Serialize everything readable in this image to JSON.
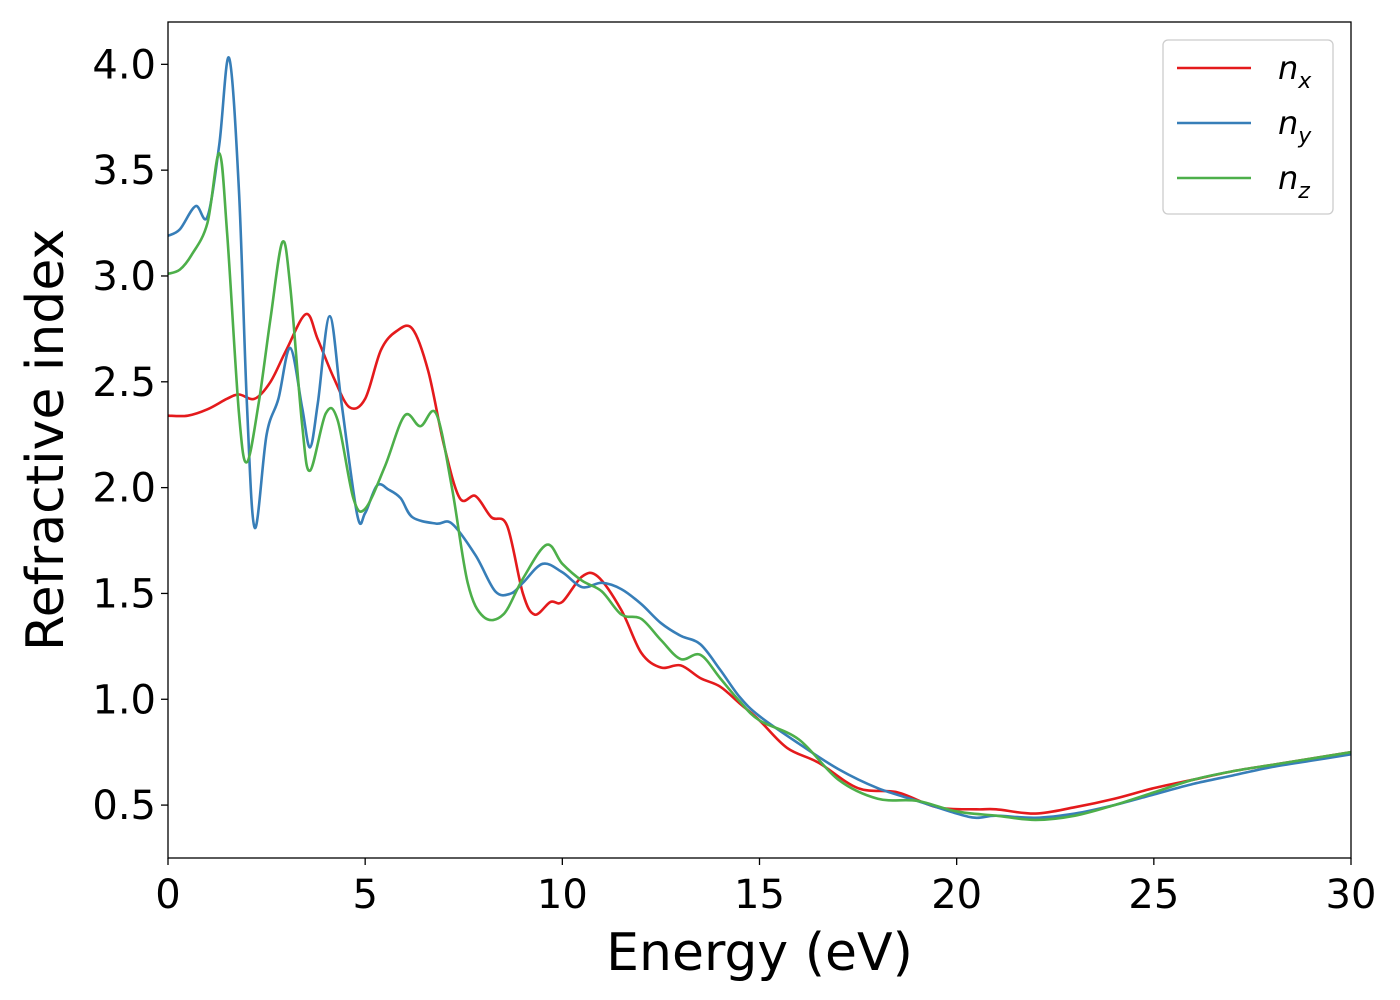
{
  "chart_data": {
    "type": "line",
    "title": "",
    "xlabel": "Energy (eV)",
    "ylabel": "Refractive index",
    "xlim": [
      0,
      30
    ],
    "ylim": [
      0.25,
      4.2
    ],
    "xticks": [
      0,
      5,
      10,
      15,
      20,
      25,
      30
    ],
    "xtick_labels": [
      "0",
      "5",
      "10",
      "15",
      "20",
      "25",
      "30"
    ],
    "yticks": [
      0.5,
      1.0,
      1.5,
      2.0,
      2.5,
      3.0,
      3.5,
      4.0
    ],
    "ytick_labels": [
      "0.5",
      "1.0",
      "1.5",
      "2.0",
      "2.5",
      "3.0",
      "3.5",
      "4.0"
    ],
    "grid": false,
    "legend_position": "top-right",
    "series": [
      {
        "name": "n",
        "subscript": "x",
        "color": "#e41a1c",
        "points": [
          [
            0,
            2.34
          ],
          [
            0.5,
            2.34
          ],
          [
            1.0,
            2.37
          ],
          [
            1.5,
            2.42
          ],
          [
            1.8,
            2.44
          ],
          [
            2.2,
            2.42
          ],
          [
            2.6,
            2.5
          ],
          [
            3.0,
            2.65
          ],
          [
            3.5,
            2.82
          ],
          [
            3.8,
            2.7
          ],
          [
            4.2,
            2.52
          ],
          [
            4.6,
            2.38
          ],
          [
            5.0,
            2.42
          ],
          [
            5.4,
            2.65
          ],
          [
            5.8,
            2.74
          ],
          [
            6.2,
            2.75
          ],
          [
            6.6,
            2.55
          ],
          [
            7.0,
            2.2
          ],
          [
            7.4,
            1.95
          ],
          [
            7.8,
            1.96
          ],
          [
            8.2,
            1.86
          ],
          [
            8.6,
            1.82
          ],
          [
            9.0,
            1.5
          ],
          [
            9.3,
            1.4
          ],
          [
            9.7,
            1.46
          ],
          [
            10.0,
            1.46
          ],
          [
            10.5,
            1.58
          ],
          [
            10.9,
            1.58
          ],
          [
            11.5,
            1.42
          ],
          [
            12.0,
            1.22
          ],
          [
            12.5,
            1.15
          ],
          [
            13.0,
            1.16
          ],
          [
            13.5,
            1.1
          ],
          [
            14.0,
            1.06
          ],
          [
            14.5,
            0.98
          ],
          [
            15.0,
            0.9
          ],
          [
            15.7,
            0.77
          ],
          [
            16.5,
            0.7
          ],
          [
            17.5,
            0.58
          ],
          [
            18.5,
            0.56
          ],
          [
            19.5,
            0.49
          ],
          [
            20.5,
            0.48
          ],
          [
            21.0,
            0.48
          ],
          [
            22.0,
            0.46
          ],
          [
            23.0,
            0.49
          ],
          [
            24.0,
            0.53
          ],
          [
            25.0,
            0.58
          ],
          [
            26.0,
            0.62
          ],
          [
            27.0,
            0.66
          ],
          [
            28.0,
            0.69
          ],
          [
            29.0,
            0.72
          ],
          [
            30.0,
            0.75
          ]
        ]
      },
      {
        "name": "n",
        "subscript": "y",
        "color": "#377eb8",
        "points": [
          [
            0,
            3.19
          ],
          [
            0.3,
            3.22
          ],
          [
            0.7,
            3.33
          ],
          [
            1.0,
            3.28
          ],
          [
            1.3,
            3.62
          ],
          [
            1.55,
            4.03
          ],
          [
            1.8,
            3.4
          ],
          [
            2.0,
            2.4
          ],
          [
            2.2,
            1.81
          ],
          [
            2.5,
            2.25
          ],
          [
            2.8,
            2.42
          ],
          [
            3.1,
            2.66
          ],
          [
            3.4,
            2.38
          ],
          [
            3.6,
            2.19
          ],
          [
            3.8,
            2.4
          ],
          [
            4.1,
            2.81
          ],
          [
            4.4,
            2.4
          ],
          [
            4.8,
            1.87
          ],
          [
            5.0,
            1.88
          ],
          [
            5.3,
            2.01
          ],
          [
            5.6,
            1.99
          ],
          [
            5.9,
            1.95
          ],
          [
            6.2,
            1.86
          ],
          [
            6.8,
            1.83
          ],
          [
            7.2,
            1.83
          ],
          [
            7.8,
            1.68
          ],
          [
            8.3,
            1.51
          ],
          [
            8.7,
            1.5
          ],
          [
            9.0,
            1.55
          ],
          [
            9.5,
            1.64
          ],
          [
            10.0,
            1.6
          ],
          [
            10.5,
            1.53
          ],
          [
            11.0,
            1.55
          ],
          [
            11.5,
            1.52
          ],
          [
            12.0,
            1.45
          ],
          [
            12.5,
            1.36
          ],
          [
            13.0,
            1.3
          ],
          [
            13.5,
            1.26
          ],
          [
            14.0,
            1.14
          ],
          [
            14.5,
            1.01
          ],
          [
            15.0,
            0.92
          ],
          [
            16.0,
            0.79
          ],
          [
            17.0,
            0.67
          ],
          [
            18.0,
            0.58
          ],
          [
            19.0,
            0.52
          ],
          [
            20.0,
            0.46
          ],
          [
            20.5,
            0.44
          ],
          [
            21.0,
            0.45
          ],
          [
            22.0,
            0.44
          ],
          [
            23.0,
            0.46
          ],
          [
            24.0,
            0.5
          ],
          [
            25.0,
            0.55
          ],
          [
            26.0,
            0.6
          ],
          [
            27.0,
            0.64
          ],
          [
            28.0,
            0.68
          ],
          [
            29.0,
            0.71
          ],
          [
            30.0,
            0.74
          ]
        ]
      },
      {
        "name": "n",
        "subscript": "z",
        "color": "#4daf4a",
        "points": [
          [
            0,
            3.01
          ],
          [
            0.3,
            3.03
          ],
          [
            0.6,
            3.1
          ],
          [
            1.0,
            3.25
          ],
          [
            1.3,
            3.58
          ],
          [
            1.5,
            3.2
          ],
          [
            1.8,
            2.35
          ],
          [
            2.0,
            2.12
          ],
          [
            2.3,
            2.4
          ],
          [
            2.6,
            2.8
          ],
          [
            2.9,
            3.16
          ],
          [
            3.1,
            2.95
          ],
          [
            3.4,
            2.3
          ],
          [
            3.6,
            2.08
          ],
          [
            4.0,
            2.35
          ],
          [
            4.3,
            2.32
          ],
          [
            4.7,
            1.95
          ],
          [
            5.0,
            1.9
          ],
          [
            5.5,
            2.1
          ],
          [
            6.0,
            2.34
          ],
          [
            6.4,
            2.29
          ],
          [
            6.8,
            2.35
          ],
          [
            7.2,
            2.0
          ],
          [
            7.6,
            1.55
          ],
          [
            8.0,
            1.39
          ],
          [
            8.5,
            1.4
          ],
          [
            9.0,
            1.57
          ],
          [
            9.6,
            1.73
          ],
          [
            10.0,
            1.64
          ],
          [
            10.5,
            1.56
          ],
          [
            11.0,
            1.51
          ],
          [
            11.5,
            1.4
          ],
          [
            12.0,
            1.38
          ],
          [
            12.5,
            1.28
          ],
          [
            13.0,
            1.19
          ],
          [
            13.5,
            1.21
          ],
          [
            14.0,
            1.1
          ],
          [
            14.5,
            0.99
          ],
          [
            15.0,
            0.9
          ],
          [
            16.0,
            0.81
          ],
          [
            17.0,
            0.62
          ],
          [
            18.0,
            0.53
          ],
          [
            19.0,
            0.52
          ],
          [
            20.0,
            0.47
          ],
          [
            21.0,
            0.45
          ],
          [
            22.0,
            0.43
          ],
          [
            23.0,
            0.45
          ],
          [
            24.0,
            0.5
          ],
          [
            25.0,
            0.56
          ],
          [
            26.0,
            0.62
          ],
          [
            27.0,
            0.66
          ],
          [
            28.0,
            0.69
          ],
          [
            29.0,
            0.72
          ],
          [
            30.0,
            0.75
          ]
        ]
      }
    ]
  }
}
